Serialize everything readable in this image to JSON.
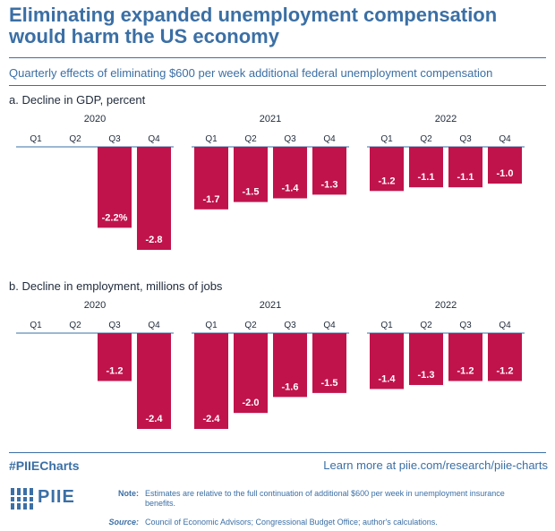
{
  "title": "Eliminating expanded unemployment compensation would harm the US economy",
  "subtitle": "Quarterly effects of eliminating $600 per week additional federal unemployment compensation",
  "colors": {
    "brand": "#3b6fa5",
    "bar": "#c0134c",
    "text": "#1f2a3a"
  },
  "chart_data": [
    {
      "type": "bar",
      "title": "a. Decline in GDP, percent",
      "years": [
        "2020",
        "2021",
        "2022"
      ],
      "categories": [
        "Q1",
        "Q2",
        "Q3",
        "Q4",
        "Q1",
        "Q2",
        "Q3",
        "Q4",
        "Q1",
        "Q2",
        "Q3",
        "Q4"
      ],
      "values": [
        null,
        null,
        -2.2,
        -2.8,
        -1.7,
        -1.5,
        -1.4,
        -1.3,
        -1.2,
        -1.1,
        -1.1,
        -1.0
      ],
      "labels": [
        "",
        "",
        "-2.2%",
        "-2.8",
        "-1.7",
        "-1.5",
        "-1.4",
        "-1.3",
        "-1.2",
        "-1.1",
        "-1.1",
        "-1.0"
      ],
      "ylim": [
        -2.8,
        0
      ]
    },
    {
      "type": "bar",
      "title": "b. Decline in employment, millions of jobs",
      "years": [
        "2020",
        "2021",
        "2022"
      ],
      "categories": [
        "Q1",
        "Q2",
        "Q3",
        "Q4",
        "Q1",
        "Q2",
        "Q3",
        "Q4",
        "Q1",
        "Q2",
        "Q3",
        "Q4"
      ],
      "values": [
        null,
        null,
        -1.2,
        -2.4,
        -2.4,
        -2.0,
        -1.6,
        -1.5,
        -1.4,
        -1.3,
        -1.2,
        -1.2
      ],
      "labels": [
        "",
        "",
        "-1.2",
        "-2.4",
        "-2.4",
        "-2.0",
        "-1.6",
        "-1.5",
        "-1.4",
        "-1.3",
        "-1.2",
        "-1.2"
      ],
      "ylim": [
        -2.4,
        0
      ]
    }
  ],
  "footer": {
    "hashtag": "#PIIECharts",
    "learn_more": "Learn more at piie.com/research/piie-charts",
    "logo_text": "PIIE",
    "note_label": "Note:",
    "note_text": "Estimates are relative to the full continuation of additional $600 per week in unemployment insurance benefits.",
    "source_label": "Source:",
    "source_text": "Council of Economic Advisors; Congressional Budget Office; author's calculations."
  }
}
